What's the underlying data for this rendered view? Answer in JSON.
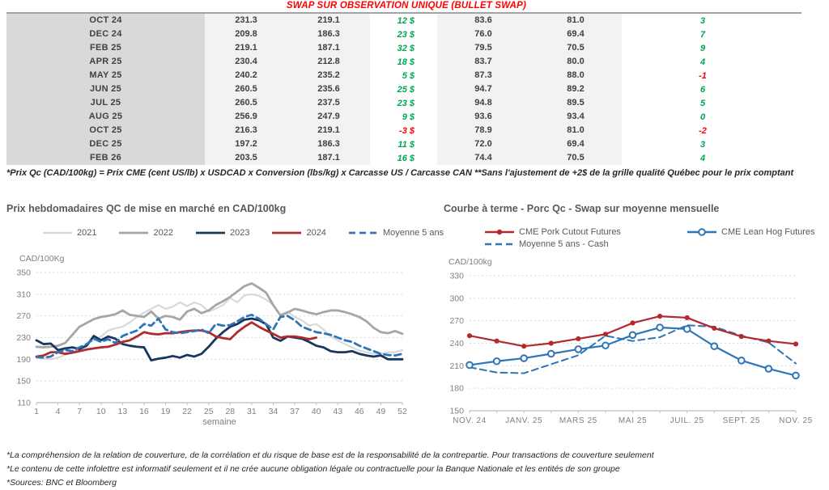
{
  "report": {
    "title": "SWAP SUR OBSERVATION UNIQUE (BULLET SWAP)",
    "table": {
      "columns": [
        "month",
        "qc_swap",
        "qc_moyenne",
        "qc_diff",
        "us_swap",
        "us_moyenne",
        "us_diff"
      ],
      "rows": [
        [
          "OCT 24",
          "231.3",
          "219.1",
          "12 $",
          "83.6",
          "81.0",
          "3"
        ],
        [
          "DEC 24",
          "209.8",
          "186.3",
          "23 $",
          "76.0",
          "69.4",
          "7"
        ],
        [
          "FEB 25",
          "219.1",
          "187.1",
          "32 $",
          "79.5",
          "70.5",
          "9"
        ],
        [
          "APR 25",
          "230.4",
          "212.8",
          "18 $",
          "83.7",
          "80.0",
          "4"
        ],
        [
          "MAY 25",
          "240.2",
          "235.2",
          "5 $",
          "87.3",
          "88.0",
          "-1"
        ],
        [
          "JUN 25",
          "260.5",
          "235.6",
          "25 $",
          "94.7",
          "89.2",
          "6"
        ],
        [
          "JUL 25",
          "260.5",
          "237.5",
          "23 $",
          "94.8",
          "89.5",
          "5"
        ],
        [
          "AUG 25",
          "256.9",
          "247.9",
          "9 $",
          "93.6",
          "93.4",
          "0"
        ],
        [
          "OCT 25",
          "216.3",
          "219.1",
          "-3 $",
          "78.9",
          "81.0",
          "-2"
        ],
        [
          "DEC 25",
          "197.2",
          "186.3",
          "11 $",
          "72.0",
          "69.4",
          "3"
        ],
        [
          "FEB 26",
          "203.5",
          "187.1",
          "16 $",
          "74.4",
          "70.5",
          "4"
        ]
      ]
    },
    "table_footnote": "*Prix Qc (CAD/100kg) = Prix CME (cent US/lb) x USDCAD x Conversion (lbs/kg) x Carcasse US / Carcasse CAN **Sans l'ajustement de +2$ de la grille qualité Québec pour le prix comptant",
    "footnotes": [
      "*La compréhension de la relation de couverture, de la corrélation et du risque de base est de la responsabilité de la contrepartie. Pour transactions de couverture seulement",
      "*Le contenu de cette infolettre est informatif seulement et il ne crée aucune obligation légale ou contractuelle pour la Banque Nationale et les entités de son groupe",
      "*Sources: BNC et Bloomberg"
    ]
  },
  "colors": {
    "title_red": "#ff0000",
    "positive_green": "#00a651",
    "negative_red": "#ff0000",
    "table_text": "#404040",
    "grid": "#d9d9d9",
    "axis": "#bfbfbf",
    "tick_text": "#7f7f7f",
    "chart_title_text": "#595959"
  },
  "chart_data": [
    {
      "type": "line",
      "title": "Prix hebdomadaires QC de mise en marché en CAD/100kg",
      "ylabel": "CAD/100Kg",
      "xlabel": "semaine",
      "ylim": [
        110,
        350
      ],
      "ytick_step": 40,
      "x_count": 52,
      "x_ticks": [
        1,
        4,
        7,
        10,
        13,
        16,
        19,
        22,
        25,
        28,
        31,
        34,
        37,
        40,
        43,
        46,
        49,
        52
      ],
      "grid": "dashed",
      "legend_position": "top",
      "series": [
        {
          "name": "2021",
          "color": "#d9d9d9",
          "width": 2.2,
          "dash": false,
          "marker": null,
          "values": [
            193,
            191,
            190,
            193,
            198,
            203,
            210,
            218,
            225,
            232,
            243,
            247,
            250,
            258,
            268,
            276,
            283,
            290,
            283,
            287,
            295,
            288,
            295,
            290,
            278,
            283,
            290,
            303,
            295,
            308,
            310,
            307,
            300,
            290,
            272,
            278,
            268,
            262,
            252,
            255,
            245,
            232,
            225,
            218,
            212,
            206,
            203,
            200,
            200,
            203,
            203,
            207
          ]
        },
        {
          "name": "2022",
          "color": "#a6a6a6",
          "width": 2.8,
          "dash": false,
          "marker": null,
          "values": [
            213,
            212,
            213,
            215,
            220,
            235,
            250,
            257,
            264,
            268,
            270,
            273,
            280,
            272,
            270,
            268,
            278,
            265,
            270,
            268,
            263,
            278,
            283,
            275,
            280,
            290,
            297,
            305,
            315,
            325,
            330,
            322,
            313,
            290,
            271,
            276,
            283,
            280,
            276,
            273,
            277,
            280,
            280,
            277,
            273,
            268,
            260,
            248,
            240,
            238,
            242,
            237
          ]
        },
        {
          "name": "2023",
          "color": "#17375e",
          "width": 2.8,
          "dash": false,
          "marker": null,
          "values": [
            225,
            218,
            219,
            207,
            210,
            212,
            209,
            215,
            233,
            225,
            232,
            228,
            218,
            215,
            213,
            212,
            188,
            191,
            193,
            196,
            193,
            198,
            195,
            200,
            213,
            228,
            240,
            250,
            255,
            263,
            265,
            262,
            255,
            230,
            224,
            232,
            230,
            228,
            222,
            215,
            212,
            205,
            203,
            203,
            205,
            200,
            197,
            195,
            197,
            190,
            190,
            190
          ]
        },
        {
          "name": "2024",
          "color": "#b2292e",
          "width": 2.8,
          "dash": false,
          "marker": null,
          "values": [
            195,
            197,
            203,
            203,
            200,
            202,
            205,
            208,
            210,
            212,
            213,
            217,
            222,
            225,
            232,
            240,
            237,
            236,
            238,
            238,
            240,
            242,
            243,
            243,
            240,
            232,
            229,
            227,
            240,
            250,
            258,
            250,
            243,
            237,
            230,
            232,
            232,
            230,
            227,
            230
          ]
        },
        {
          "name": "Moyenne 5 ans",
          "color": "#2e75b6",
          "width": 2.8,
          "dash": true,
          "marker": null,
          "values": [
            194,
            193,
            195,
            203,
            207,
            205,
            212,
            218,
            228,
            222,
            227,
            220,
            233,
            238,
            243,
            255,
            252,
            265,
            245,
            240,
            238,
            240,
            242,
            245,
            238,
            255,
            252,
            253,
            260,
            268,
            272,
            265,
            255,
            245,
            268,
            270,
            262,
            250,
            245,
            240,
            238,
            235,
            230,
            225,
            222,
            215,
            210,
            205,
            200,
            198,
            197,
            200
          ]
        }
      ]
    },
    {
      "type": "line",
      "title": "Courbe à terme - Porc Qc - Swap sur moyenne mensuelle",
      "ylabel": "CAD/100kg",
      "ylim": [
        150,
        330
      ],
      "ytick_step": 30,
      "x_count": 13,
      "x_labels": [
        "NOV. 24",
        "JANV. 25",
        "MARS 25",
        "MAI 25",
        "JUIL. 25",
        "SEPT. 25",
        "NOV. 25"
      ],
      "label_every": 2,
      "grid": "dashed",
      "legend_position": "top",
      "series": [
        {
          "name": "CME Pork Cutout Futures",
          "color": "#b2292e",
          "width": 2.2,
          "dash": false,
          "marker": "circle-filled",
          "values": [
            250,
            243,
            236,
            240,
            246,
            252,
            267,
            276,
            274,
            260,
            249,
            243,
            239
          ]
        },
        {
          "name": "CME Lean Hog Futures",
          "color": "#2e75b6",
          "width": 2.2,
          "dash": false,
          "marker": "circle-open",
          "values": [
            211,
            216,
            220,
            226,
            232,
            237,
            251,
            261,
            259,
            236,
            217,
            206,
            197
          ]
        },
        {
          "name": "Moyenne 5 ans - Cash",
          "color": "#2e75b6",
          "width": 2.0,
          "dash": true,
          "marker": null,
          "values": [
            208,
            201,
            200,
            212,
            224,
            250,
            243,
            248,
            264,
            262,
            250,
            241,
            213
          ]
        }
      ]
    }
  ]
}
